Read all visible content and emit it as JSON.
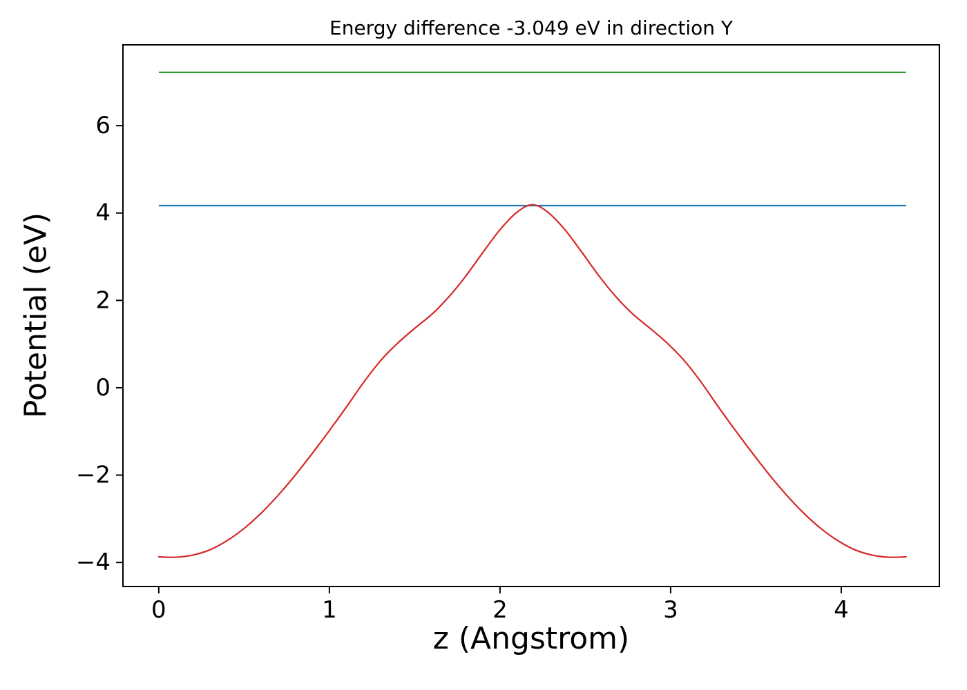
{
  "chart_data": {
    "type": "line",
    "title": "Energy difference -3.049 eV in direction Y",
    "xlabel": "z (Angstrom)",
    "ylabel": "Potential (eV)",
    "xlim": [
      -0.21,
      4.575
    ],
    "ylim": [
      -4.55,
      7.85
    ],
    "xticks": [
      0,
      1,
      2,
      3,
      4
    ],
    "yticks": [
      -4,
      -2,
      0,
      2,
      4,
      6
    ],
    "grid": false,
    "legend": "none",
    "energy_difference_eV": -3.049,
    "direction": "Y",
    "series": [
      {
        "name": "upper-reference-level",
        "kind": "hline",
        "color": "#2ca02c",
        "y": 7.22,
        "x_start": 0.0,
        "x_end": 4.38
      },
      {
        "name": "lower-reference-level",
        "kind": "hline",
        "color": "#1f77b4",
        "y": 4.17,
        "x_start": 0.0,
        "x_end": 4.38
      },
      {
        "name": "planar-averaged-potential",
        "kind": "curve",
        "color": "#d62728",
        "points": [
          [
            0.0,
            -3.87
          ],
          [
            0.1,
            -3.88
          ],
          [
            0.2,
            -3.83
          ],
          [
            0.3,
            -3.71
          ],
          [
            0.4,
            -3.5
          ],
          [
            0.5,
            -3.22
          ],
          [
            0.6,
            -2.87
          ],
          [
            0.7,
            -2.46
          ],
          [
            0.8,
            -2.0
          ],
          [
            0.9,
            -1.5
          ],
          [
            1.0,
            -0.98
          ],
          [
            1.1,
            -0.44
          ],
          [
            1.2,
            0.12
          ],
          [
            1.3,
            0.62
          ],
          [
            1.4,
            1.02
          ],
          [
            1.5,
            1.36
          ],
          [
            1.6,
            1.68
          ],
          [
            1.7,
            2.08
          ],
          [
            1.8,
            2.56
          ],
          [
            1.9,
            3.1
          ],
          [
            2.0,
            3.62
          ],
          [
            2.1,
            4.02
          ],
          [
            2.19,
            4.19
          ],
          [
            2.28,
            4.02
          ],
          [
            2.38,
            3.62
          ],
          [
            2.48,
            3.1
          ],
          [
            2.58,
            2.56
          ],
          [
            2.68,
            2.08
          ],
          [
            2.78,
            1.68
          ],
          [
            2.88,
            1.36
          ],
          [
            2.98,
            1.02
          ],
          [
            3.08,
            0.62
          ],
          [
            3.18,
            0.12
          ],
          [
            3.28,
            -0.44
          ],
          [
            3.38,
            -0.98
          ],
          [
            3.48,
            -1.5
          ],
          [
            3.58,
            -2.0
          ],
          [
            3.68,
            -2.46
          ],
          [
            3.78,
            -2.87
          ],
          [
            3.88,
            -3.22
          ],
          [
            3.98,
            -3.5
          ],
          [
            4.08,
            -3.71
          ],
          [
            4.18,
            -3.83
          ],
          [
            4.28,
            -3.88
          ],
          [
            4.38,
            -3.87
          ]
        ]
      }
    ],
    "style": {
      "spine_color": "#000000",
      "background": "#ffffff",
      "tick_label_size": 34,
      "line_width": 2.2
    }
  }
}
